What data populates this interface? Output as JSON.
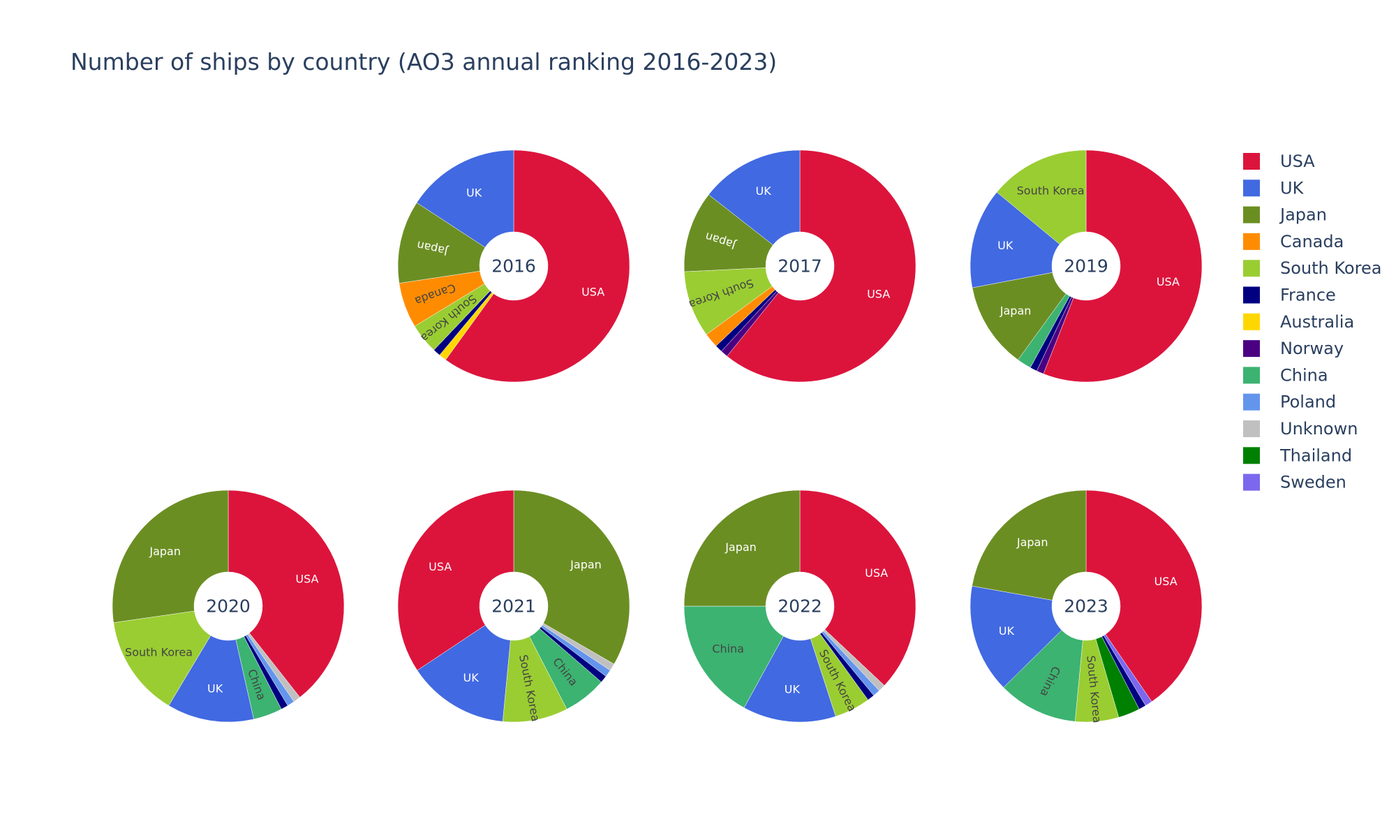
{
  "chart_data": {
    "type": "pie",
    "title": "Number of ships by country (AO3 annual ranking 2016-2023)",
    "legend_position": "right",
    "countries": [
      "USA",
      "UK",
      "Japan",
      "Canada",
      "South Korea",
      "France",
      "Australia",
      "Norway",
      "China",
      "Poland",
      "Unknown",
      "Thailand",
      "Sweden"
    ],
    "colors": {
      "USA": "#DC143C",
      "UK": "#4169E1",
      "Japan": "#6B8E23",
      "Canada": "#FF8C00",
      "South Korea": "#9ACD32",
      "France": "#000080",
      "Australia": "#FFD700",
      "Norway": "#4B0082",
      "China": "#3CB371",
      "Poland": "#6495ED",
      "Unknown": "#C0C0C0",
      "Thailand": "#008000",
      "Sweden": "#7B68EE"
    },
    "pies": [
      {
        "year": "2016",
        "slices": [
          {
            "label": "USA",
            "value": 57
          },
          {
            "label": "Australia",
            "value": 1
          },
          {
            "label": "France",
            "value": 1
          },
          {
            "label": "South Korea",
            "value": 4
          },
          {
            "label": "Canada",
            "value": 6
          },
          {
            "label": "Japan",
            "value": 11
          },
          {
            "label": "UK",
            "value": 15
          }
        ]
      },
      {
        "year": "2017",
        "slices": [
          {
            "label": "USA",
            "value": 59
          },
          {
            "label": "Norway",
            "value": 1
          },
          {
            "label": "France",
            "value": 1
          },
          {
            "label": "Canada",
            "value": 2
          },
          {
            "label": "South Korea",
            "value": 9
          },
          {
            "label": "Japan",
            "value": 11
          },
          {
            "label": "UK",
            "value": 14
          }
        ]
      },
      {
        "year": "2019",
        "slices": [
          {
            "label": "USA",
            "value": 56
          },
          {
            "label": "Norway",
            "value": 1
          },
          {
            "label": "France",
            "value": 1
          },
          {
            "label": "China",
            "value": 2
          },
          {
            "label": "Japan",
            "value": 12
          },
          {
            "label": "UK",
            "value": 14
          },
          {
            "label": "South Korea",
            "value": 14
          }
        ]
      },
      {
        "year": "2020",
        "slices": [
          {
            "label": "USA",
            "value": 39
          },
          {
            "label": "Unknown",
            "value": 1
          },
          {
            "label": "Poland",
            "value": 1
          },
          {
            "label": "France",
            "value": 1
          },
          {
            "label": "China",
            "value": 4
          },
          {
            "label": "UK",
            "value": 12
          },
          {
            "label": "South Korea",
            "value": 14
          },
          {
            "label": "Japan",
            "value": 27
          }
        ]
      },
      {
        "year": "2021",
        "slices": [
          {
            "label": "Japan",
            "value": 33
          },
          {
            "label": "Unknown",
            "value": 1
          },
          {
            "label": "Poland",
            "value": 1
          },
          {
            "label": "France",
            "value": 1
          },
          {
            "label": "China",
            "value": 6
          },
          {
            "label": "South Korea",
            "value": 9
          },
          {
            "label": "UK",
            "value": 14
          },
          {
            "label": "USA",
            "value": 34
          }
        ]
      },
      {
        "year": "2022",
        "slices": [
          {
            "label": "USA",
            "value": 37
          },
          {
            "label": "Unknown",
            "value": 1
          },
          {
            "label": "Poland",
            "value": 1
          },
          {
            "label": "France",
            "value": 1
          },
          {
            "label": "South Korea",
            "value": 5
          },
          {
            "label": "UK",
            "value": 13
          },
          {
            "label": "China",
            "value": 17
          },
          {
            "label": "Japan",
            "value": 25
          }
        ]
      },
      {
        "year": "2023",
        "slices": [
          {
            "label": "USA",
            "value": 40
          },
          {
            "label": "Sweden",
            "value": 1
          },
          {
            "label": "France",
            "value": 1
          },
          {
            "label": "Thailand",
            "value": 3
          },
          {
            "label": "South Korea",
            "value": 6
          },
          {
            "label": "China",
            "value": 11
          },
          {
            "label": "UK",
            "value": 15
          },
          {
            "label": "Japan",
            "value": 22
          }
        ]
      }
    ]
  }
}
